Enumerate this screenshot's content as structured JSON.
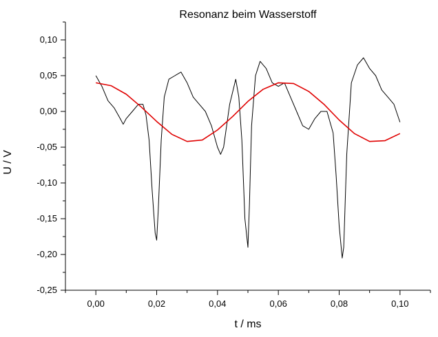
{
  "chart_data": {
    "type": "line",
    "title": "Resonanz beim Wasserstoff",
    "xlabel": "t / ms",
    "ylabel": "U / V",
    "xlim": [
      -0.01,
      0.11
    ],
    "ylim": [
      -0.25,
      0.125
    ],
    "xticks": [
      0.0,
      0.02,
      0.04,
      0.06,
      0.08,
      0.1
    ],
    "yticks": [
      -0.25,
      -0.2,
      -0.15,
      -0.1,
      -0.05,
      0.0,
      0.05,
      0.1
    ],
    "xtick_labels": [
      "0,00",
      "0,02",
      "0,04",
      "0,06",
      "0,08",
      "0,10"
    ],
    "ytick_labels": [
      "-0,25",
      "-0,20",
      "-0,15",
      "-0,10",
      "-0,05",
      "0,00",
      "0,05",
      "0,10"
    ],
    "grid": false,
    "series": [
      {
        "color": "#000000",
        "x": [
          0.0,
          0.002,
          0.004,
          0.006,
          0.008,
          0.009,
          0.01,
          0.012,
          0.014,
          0.0155,
          0.0165,
          0.0175,
          0.0185,
          0.0195,
          0.02,
          0.0205,
          0.0215,
          0.0225,
          0.024,
          0.026,
          0.028,
          0.03,
          0.032,
          0.034,
          0.036,
          0.038,
          0.04,
          0.041,
          0.042,
          0.044,
          0.046,
          0.047,
          0.048,
          0.049,
          0.05,
          0.0505,
          0.0512,
          0.0525,
          0.054,
          0.056,
          0.058,
          0.06,
          0.062,
          0.064,
          0.066,
          0.068,
          0.07,
          0.072,
          0.074,
          0.076,
          0.078,
          0.079,
          0.08,
          0.081,
          0.0815,
          0.0825,
          0.084,
          0.086,
          0.088,
          0.09,
          0.092,
          0.094,
          0.096,
          0.098,
          0.1
        ],
        "y": [
          0.05,
          0.035,
          0.015,
          0.005,
          -0.01,
          -0.018,
          -0.01,
          0.0,
          0.01,
          0.01,
          -0.005,
          -0.04,
          -0.11,
          -0.17,
          -0.18,
          -0.14,
          -0.04,
          0.02,
          0.045,
          0.05,
          0.055,
          0.04,
          0.02,
          0.01,
          0.0,
          -0.02,
          -0.05,
          -0.06,
          -0.05,
          0.01,
          0.045,
          0.02,
          -0.04,
          -0.15,
          -0.19,
          -0.13,
          -0.02,
          0.05,
          0.07,
          0.06,
          0.04,
          0.035,
          0.04,
          0.02,
          0.0,
          -0.02,
          -0.025,
          -0.01,
          0.0,
          0.0,
          -0.03,
          -0.09,
          -0.16,
          -0.205,
          -0.19,
          -0.06,
          0.04,
          0.065,
          0.075,
          0.06,
          0.05,
          0.03,
          0.02,
          0.01,
          -0.015
        ]
      },
      {
        "color": "#e00000",
        "x": [
          0.0,
          0.005,
          0.01,
          0.015,
          0.02,
          0.025,
          0.03,
          0.035,
          0.04,
          0.045,
          0.05,
          0.055,
          0.06,
          0.065,
          0.07,
          0.075,
          0.08,
          0.085,
          0.09,
          0.095,
          0.1
        ],
        "y": [
          0.04,
          0.036,
          0.024,
          0.006,
          -0.014,
          -0.032,
          -0.042,
          -0.04,
          -0.026,
          -0.007,
          0.014,
          0.031,
          0.04,
          0.039,
          0.028,
          0.01,
          -0.012,
          -0.031,
          -0.042,
          -0.041,
          -0.031
        ]
      }
    ]
  }
}
